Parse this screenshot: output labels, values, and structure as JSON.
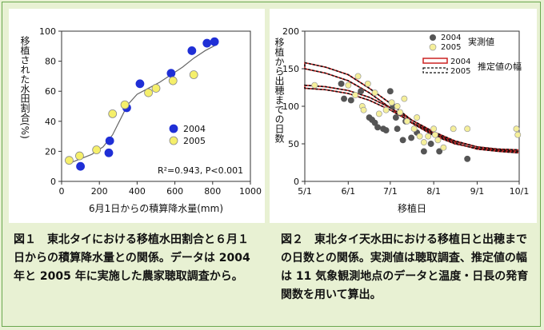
{
  "captions": {
    "fig1": "図１　東北タイにおける移植水田割合と６月１日からの積算降水量との関係。データは 2004 年と 2005 年に実施した農家聴取調査から。",
    "fig2": "図２　東北タイ天水田における移植日と出穂までの日数との関係。実測値は聴取調査、推定値の幅は 11 気象観測地点のデータと温度・日長の発育関数を用いて算出。"
  },
  "chart_data": [
    {
      "type": "scatter",
      "xlabel": "6月1日からの積算降水量(mm)",
      "ylabel": "移植された水田割合(%)",
      "xlim": [
        0,
        1000
      ],
      "ylim": [
        0,
        100
      ],
      "xticks": [
        "0",
        "200",
        "400",
        "600",
        "800",
        "1000"
      ],
      "yticks": [
        "0",
        "20",
        "40",
        "60",
        "80",
        "100"
      ],
      "annotation": "R²=0.943, P<0.001",
      "legend_position": "lower-right",
      "colors": {
        "2004": "#1f2fd6",
        "2005": "#f5ef6a",
        "curve": "#555555"
      },
      "series": [
        {
          "name": "2004",
          "points": [
            [
              100,
              10
            ],
            [
              250,
              19
            ],
            [
              255,
              27
            ],
            [
              345,
              49
            ],
            [
              415,
              65
            ],
            [
              580,
              72
            ],
            [
              690,
              87
            ],
            [
              770,
              92
            ],
            [
              810,
              93
            ]
          ]
        },
        {
          "name": "2005",
          "points": [
            [
              40,
              14
            ],
            [
              95,
              17
            ],
            [
              185,
              21
            ],
            [
              270,
              45
            ],
            [
              335,
              51
            ],
            [
              460,
              59
            ],
            [
              500,
              62
            ],
            [
              590,
              67
            ],
            [
              700,
              71
            ]
          ]
        }
      ],
      "fit_curve": [
        [
          40,
          12
        ],
        [
          100,
          15
        ],
        [
          160,
          18
        ],
        [
          220,
          23
        ],
        [
          270,
          31
        ],
        [
          310,
          41
        ],
        [
          350,
          51
        ],
        [
          400,
          58
        ],
        [
          460,
          62
        ],
        [
          520,
          66
        ],
        [
          580,
          71
        ],
        [
          640,
          76
        ],
        [
          700,
          82
        ],
        [
          760,
          87
        ],
        [
          820,
          91
        ]
      ]
    },
    {
      "type": "scatter",
      "xlabel": "移植日",
      "ylabel": "移植から出穂までの日数",
      "ylim": [
        0,
        200
      ],
      "xticks": [
        "5/1",
        "6/1",
        "7/1",
        "8/1",
        "9/1",
        "10/1"
      ],
      "yticks": [
        "0",
        "50",
        "100",
        "150",
        "200"
      ],
      "legend_position": "top-right",
      "colors": {
        "2004": "#555555",
        "2005": "#f5ef9a",
        "band_2004": "#cc2222",
        "band_2005": "#111111"
      },
      "legend": {
        "observed": "実測値",
        "estimated": "推定値の幅",
        "years": [
          "2004",
          "2005"
        ]
      },
      "series": [
        {
          "name": "2004",
          "points": [
            [
              "5/27",
              130
            ],
            [
              "5/29",
              110
            ],
            [
              "6/3",
              108
            ],
            [
              "6/10",
              120
            ],
            [
              "6/16",
              85
            ],
            [
              "6/18",
              82
            ],
            [
              "6/20",
              78
            ],
            [
              "6/22",
              72
            ],
            [
              "6/26",
              70
            ],
            [
              "6/28",
              68
            ],
            [
              "7/1",
              120
            ],
            [
              "7/3",
              100
            ],
            [
              "7/5",
              85
            ],
            [
              "7/6",
              70
            ],
            [
              "7/10",
              55
            ],
            [
              "7/12",
              80
            ],
            [
              "7/16",
              58
            ],
            [
              "7/20",
              65
            ],
            [
              "7/25",
              40
            ],
            [
              "7/30",
              50
            ],
            [
              "8/5",
              40
            ],
            [
              "8/25",
              30
            ]
          ]
        },
        {
          "name": "2005",
          "points": [
            [
              "5/8",
              128
            ],
            [
              "6/1",
              128
            ],
            [
              "6/6",
              115
            ],
            [
              "6/8",
              140
            ],
            [
              "6/11",
              100
            ],
            [
              "6/12",
              95
            ],
            [
              "6/15",
              130
            ],
            [
              "6/20",
              118
            ],
            [
              "6/23",
              90
            ],
            [
              "6/28",
              95
            ],
            [
              "7/2",
              105
            ],
            [
              "7/6",
              100
            ],
            [
              "7/8",
              92
            ],
            [
              "7/11",
              110
            ],
            [
              "7/13",
              80
            ],
            [
              "7/18",
              70
            ],
            [
              "7/20",
              85
            ],
            [
              "7/22",
              60
            ],
            [
              "7/25",
              52
            ],
            [
              "7/28",
              60
            ],
            [
              "8/1",
              70
            ],
            [
              "8/2",
              62
            ],
            [
              "8/4",
              55
            ],
            [
              "8/8",
              45
            ],
            [
              "8/15",
              70
            ],
            [
              "8/25",
              70
            ],
            [
              "9/29",
              70
            ],
            [
              "9/30",
              62
            ]
          ]
        }
      ],
      "band_2004_upper": [
        [
          "5/1",
          158
        ],
        [
          "5/16",
          152
        ],
        [
          "6/1",
          142
        ],
        [
          "6/16",
          124
        ],
        [
          "7/1",
          104
        ],
        [
          "7/16",
          82
        ],
        [
          "8/1",
          64
        ],
        [
          "8/16",
          53
        ],
        [
          "9/1",
          46
        ],
        [
          "9/16",
          43
        ],
        [
          "9/30",
          42
        ]
      ],
      "band_2004_lower": [
        [
          "5/1",
          150
        ],
        [
          "5/16",
          144
        ],
        [
          "6/1",
          134
        ],
        [
          "6/16",
          118
        ],
        [
          "7/1",
          98
        ],
        [
          "7/16",
          78
        ],
        [
          "8/1",
          61
        ],
        [
          "8/16",
          50
        ],
        [
          "9/1",
          44
        ],
        [
          "9/16",
          41
        ],
        [
          "9/30",
          40
        ]
      ],
      "band_2005_upper": [
        [
          "5/1",
          128
        ],
        [
          "5/16",
          126
        ],
        [
          "6/1",
          121
        ],
        [
          "6/16",
          112
        ],
        [
          "7/1",
          98
        ],
        [
          "7/16",
          82
        ],
        [
          "8/1",
          66
        ],
        [
          "8/16",
          54
        ],
        [
          "9/1",
          46
        ],
        [
          "9/16",
          42
        ],
        [
          "9/30",
          40
        ]
      ],
      "band_2005_lower": [
        [
          "5/1",
          124
        ],
        [
          "5/16",
          122
        ],
        [
          "6/1",
          117
        ],
        [
          "6/16",
          108
        ],
        [
          "7/1",
          95
        ],
        [
          "7/16",
          79
        ],
        [
          "8/1",
          63
        ],
        [
          "8/16",
          51
        ],
        [
          "9/1",
          43
        ],
        [
          "9/16",
          40
        ],
        [
          "9/30",
          38
        ]
      ]
    }
  ]
}
